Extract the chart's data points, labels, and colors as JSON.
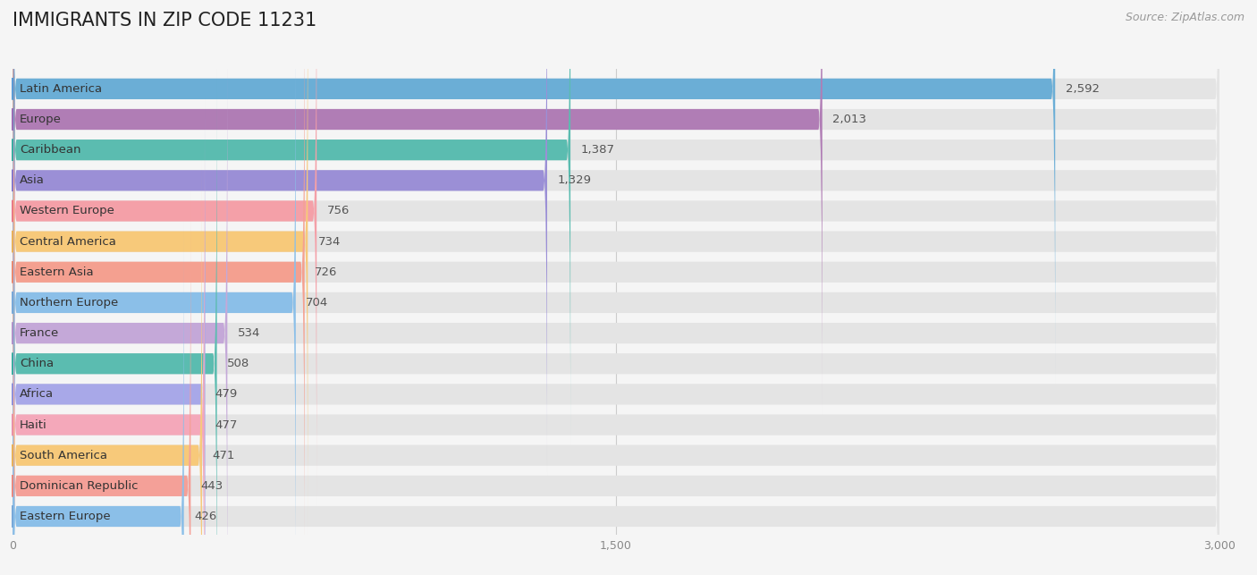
{
  "title": "IMMIGRANTS IN ZIP CODE 11231",
  "source": "Source: ZipAtlas.com",
  "categories": [
    "Latin America",
    "Europe",
    "Caribbean",
    "Asia",
    "Western Europe",
    "Central America",
    "Eastern Asia",
    "Northern Europe",
    "France",
    "China",
    "Africa",
    "Haiti",
    "South America",
    "Dominican Republic",
    "Eastern Europe"
  ],
  "values": [
    2592,
    2013,
    1387,
    1329,
    756,
    734,
    726,
    704,
    534,
    508,
    479,
    477,
    471,
    443,
    426
  ],
  "bar_colors": [
    "#6BAED6",
    "#B07DB5",
    "#5BBCB0",
    "#9B8FD6",
    "#F4A0A8",
    "#F7C97A",
    "#F4A090",
    "#8BBFE8",
    "#C4A8D8",
    "#5BBCB0",
    "#A8A8E8",
    "#F4A8BA",
    "#F7C97A",
    "#F4A098",
    "#8BBFE8"
  ],
  "dot_colors": [
    "#5B9BD5",
    "#9B6DB5",
    "#3BACA0",
    "#8878C8",
    "#E87888",
    "#E8B058",
    "#E88870",
    "#78A8D8",
    "#B090C8",
    "#3BACA0",
    "#9090D8",
    "#E890A8",
    "#E8B058",
    "#E88880",
    "#78A8D8"
  ],
  "xlim": [
    0,
    3000
  ],
  "xticks": [
    0,
    1500,
    3000
  ],
  "xtick_labels": [
    "0",
    "1,500",
    "3,000"
  ],
  "background_color": "#F5F5F5",
  "bar_background_color": "#E4E4E4",
  "title_fontsize": 15,
  "label_fontsize": 9.5,
  "value_fontsize": 9.5,
  "source_fontsize": 9
}
